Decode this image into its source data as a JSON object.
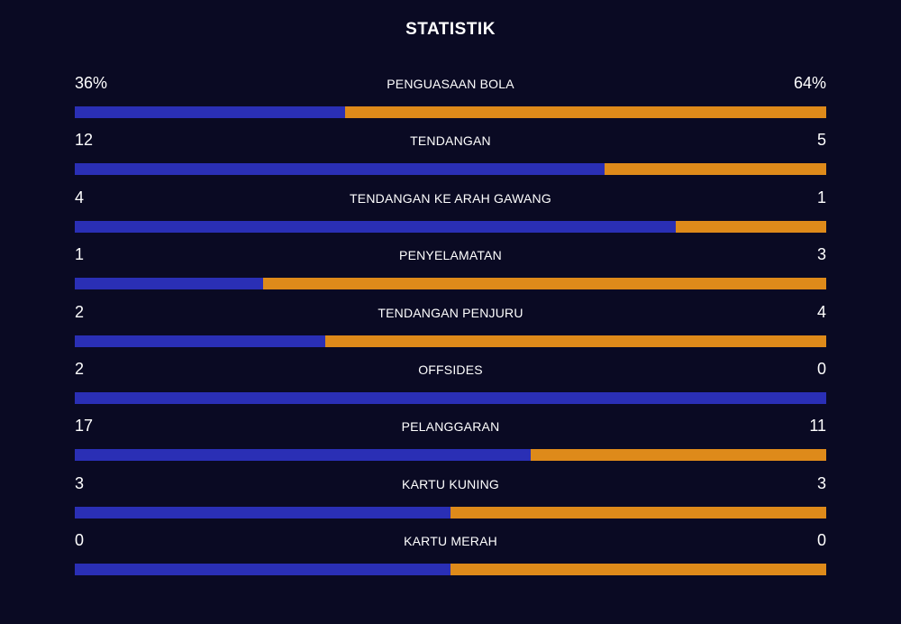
{
  "title": "STATISTIK",
  "colors": {
    "background": "#0a0a23",
    "home": "#2a2fb5",
    "away": "#de8a1a",
    "text": "#ffffff"
  },
  "stats": [
    {
      "label": "PENGUASAAN BOLA",
      "left": "36%",
      "right": "64%",
      "share": 0.36
    },
    {
      "label": "TENDANGAN",
      "left": "12",
      "right": "5",
      "share": 0.705
    },
    {
      "label": "TENDANGAN KE ARAH GAWANG",
      "left": "4",
      "right": "1",
      "share": 0.8
    },
    {
      "label": "PENYELAMATAN",
      "left": "1",
      "right": "3",
      "share": 0.25
    },
    {
      "label": "TENDANGAN PENJURU",
      "left": "2",
      "right": "4",
      "share": 0.333
    },
    {
      "label": "OFFSIDES",
      "left": "2",
      "right": "0",
      "share": 1.0
    },
    {
      "label": "PELANGGARAN",
      "left": "17",
      "right": "11",
      "share": 0.607
    },
    {
      "label": "KARTU KUNING",
      "left": "3",
      "right": "3",
      "share": 0.5
    },
    {
      "label": "KARTU MERAH",
      "left": "0",
      "right": "0",
      "share": 0.5
    }
  ]
}
